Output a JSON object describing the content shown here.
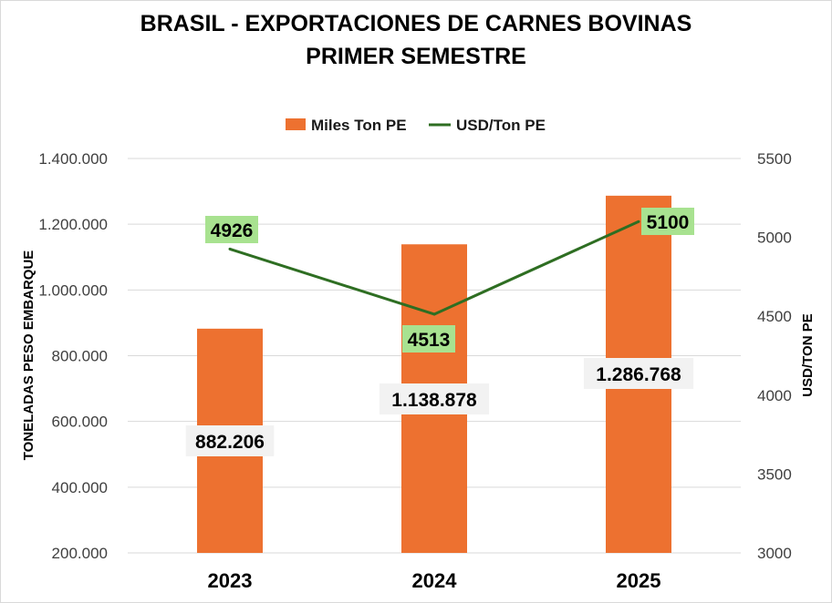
{
  "chart_data": {
    "type": "bar",
    "title_line1": "BRASIL - EXPORTACIONES DE CARNES BOVINAS",
    "title_line2": "PRIMER SEMESTRE",
    "categories": [
      "2023",
      "2024",
      "2025"
    ],
    "series": [
      {
        "name": "Miles Ton PE",
        "type": "bar",
        "axis": "left",
        "color": "#ED7130",
        "values": [
          882206,
          1138878,
          1286768
        ],
        "labels": [
          "882.206",
          "1.138.878",
          "1.286.768"
        ]
      },
      {
        "name": "USD/Ton PE",
        "type": "line",
        "axis": "right",
        "color": "#2E6E22",
        "label_bg": "#A8E290",
        "values": [
          4926,
          4513,
          5100
        ],
        "labels": [
          "4926",
          "4513",
          "5100"
        ]
      }
    ],
    "ylabel": "TONELADAS PESO EMBARQUE",
    "y2label": "USD/TON PE",
    "ylim": [
      200000,
      1400000
    ],
    "y2lim": [
      3000,
      5500
    ],
    "yticks": [
      "200.000",
      "400.000",
      "600.000",
      "800.000",
      "1.000.000",
      "1.200.000",
      "1.400.000"
    ],
    "y2ticks": [
      "3000",
      "3500",
      "4000",
      "4500",
      "5000",
      "5500"
    ],
    "grid": true,
    "legend_position": "top"
  }
}
